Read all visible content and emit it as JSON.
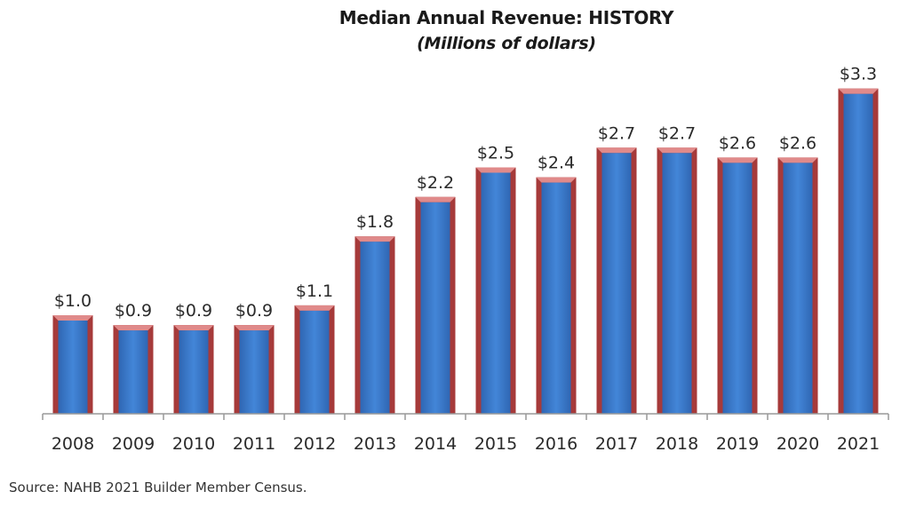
{
  "chart_data": {
    "type": "bar",
    "title": "Median Annual Revenue: HISTORY",
    "subtitle": "(Millions of dollars)",
    "xlabel": "",
    "ylabel": "",
    "categories": [
      "2008",
      "2009",
      "2010",
      "2011",
      "2012",
      "2013",
      "2014",
      "2015",
      "2016",
      "2017",
      "2018",
      "2019",
      "2020",
      "2021"
    ],
    "values": [
      1.0,
      0.9,
      0.9,
      0.9,
      1.1,
      1.8,
      2.2,
      2.5,
      2.4,
      2.7,
      2.7,
      2.6,
      2.6,
      3.3
    ],
    "data_labels": [
      "$1.0",
      "$0.9",
      "$0.9",
      "$0.9",
      "$1.1",
      "$1.8",
      "$2.2",
      "$2.5",
      "$2.4",
      "$2.7",
      "$2.7",
      "$2.6",
      "$2.6",
      "$3.3"
    ],
    "ylim": [
      0,
      3.3
    ],
    "grid": false,
    "legend": "none",
    "colors": {
      "bar_fill": "#3f7fd0",
      "bar_edge": "#a63a3a",
      "bar_top": "#e08a8a",
      "axis": "#999999"
    }
  },
  "source": "Source: NAHB 2021 Builder Member Census."
}
